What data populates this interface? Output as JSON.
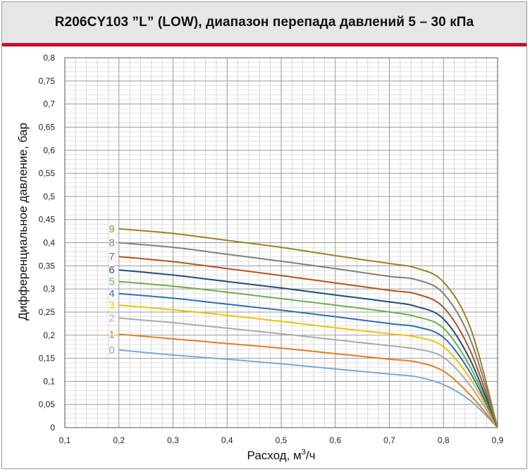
{
  "header": {
    "title": "R206CY103 ”L” (LOW), диапазон перепада давлений 5 – 30 кПа"
  },
  "colors": {
    "accent_bar": "#c8102e",
    "header_bg": "#e6e6e6"
  },
  "chart_data": {
    "type": "line",
    "xlabel_main": "Расход, м",
    "xlabel_sup": "3",
    "xlabel_tail": "/ч",
    "ylabel": "Дифференциальное давление, бар",
    "xlim": [
      0.1,
      0.9
    ],
    "ylim": [
      0,
      0.8
    ],
    "grid": true,
    "x_ticks": [
      "0,1",
      "0,2",
      "0,3",
      "0,4",
      "0,5",
      "0,6",
      "0,7",
      "0,8",
      "0,9"
    ],
    "y_ticks": [
      "0",
      "0,05",
      "0,1",
      "0,15",
      "0,2",
      "0,25",
      "0,3",
      "0,35",
      "0,4",
      "0,45",
      "0,5",
      "0,55",
      "0,6",
      "0,65",
      "0,7",
      "0,75",
      "0,8"
    ],
    "series": [
      {
        "name": "0",
        "color": "#7ea7cf",
        "points": [
          [
            0.2,
            0.168
          ],
          [
            0.3,
            0.157
          ],
          [
            0.4,
            0.148
          ],
          [
            0.5,
            0.138
          ],
          [
            0.6,
            0.127
          ],
          [
            0.7,
            0.116
          ],
          [
            0.75,
            0.11
          ],
          [
            0.8,
            0.093
          ],
          [
            0.85,
            0.058
          ],
          [
            0.9,
            0
          ]
        ]
      },
      {
        "name": "1",
        "color": "#e07e22",
        "points": [
          [
            0.2,
            0.202
          ],
          [
            0.3,
            0.192
          ],
          [
            0.4,
            0.182
          ],
          [
            0.5,
            0.172
          ],
          [
            0.6,
            0.16
          ],
          [
            0.7,
            0.148
          ],
          [
            0.75,
            0.142
          ],
          [
            0.8,
            0.122
          ],
          [
            0.85,
            0.07
          ],
          [
            0.9,
            0
          ]
        ]
      },
      {
        "name": "2",
        "color": "#aaaaaa",
        "points": [
          [
            0.2,
            0.237
          ],
          [
            0.3,
            0.227
          ],
          [
            0.4,
            0.215
          ],
          [
            0.5,
            0.203
          ],
          [
            0.6,
            0.19
          ],
          [
            0.7,
            0.177
          ],
          [
            0.75,
            0.17
          ],
          [
            0.8,
            0.152
          ],
          [
            0.85,
            0.09
          ],
          [
            0.9,
            0
          ]
        ]
      },
      {
        "name": "3",
        "color": "#f2c200",
        "points": [
          [
            0.2,
            0.265
          ],
          [
            0.3,
            0.255
          ],
          [
            0.4,
            0.243
          ],
          [
            0.5,
            0.23
          ],
          [
            0.6,
            0.216
          ],
          [
            0.7,
            0.203
          ],
          [
            0.75,
            0.196
          ],
          [
            0.8,
            0.175
          ],
          [
            0.85,
            0.105
          ],
          [
            0.9,
            0
          ]
        ]
      },
      {
        "name": "4",
        "color": "#2f6fb5",
        "points": [
          [
            0.2,
            0.29
          ],
          [
            0.3,
            0.28
          ],
          [
            0.4,
            0.267
          ],
          [
            0.5,
            0.254
          ],
          [
            0.6,
            0.24
          ],
          [
            0.7,
            0.225
          ],
          [
            0.75,
            0.218
          ],
          [
            0.8,
            0.195
          ],
          [
            0.85,
            0.118
          ],
          [
            0.9,
            0
          ]
        ]
      },
      {
        "name": "5",
        "color": "#6ab04c",
        "points": [
          [
            0.2,
            0.316
          ],
          [
            0.3,
            0.306
          ],
          [
            0.4,
            0.293
          ],
          [
            0.5,
            0.279
          ],
          [
            0.6,
            0.265
          ],
          [
            0.7,
            0.25
          ],
          [
            0.75,
            0.24
          ],
          [
            0.8,
            0.215
          ],
          [
            0.85,
            0.13
          ],
          [
            0.9,
            0
          ]
        ]
      },
      {
        "name": "6",
        "color": "#1f4e79",
        "points": [
          [
            0.2,
            0.341
          ],
          [
            0.3,
            0.33
          ],
          [
            0.4,
            0.316
          ],
          [
            0.5,
            0.302
          ],
          [
            0.6,
            0.287
          ],
          [
            0.7,
            0.272
          ],
          [
            0.75,
            0.262
          ],
          [
            0.8,
            0.235
          ],
          [
            0.85,
            0.145
          ],
          [
            0.9,
            0
          ]
        ]
      },
      {
        "name": "7",
        "color": "#b5541e",
        "points": [
          [
            0.2,
            0.37
          ],
          [
            0.3,
            0.359
          ],
          [
            0.4,
            0.344
          ],
          [
            0.5,
            0.329
          ],
          [
            0.6,
            0.313
          ],
          [
            0.7,
            0.297
          ],
          [
            0.75,
            0.289
          ],
          [
            0.8,
            0.26
          ],
          [
            0.85,
            0.165
          ],
          [
            0.9,
            0
          ]
        ]
      },
      {
        "name": "8",
        "color": "#808080",
        "points": [
          [
            0.2,
            0.4
          ],
          [
            0.3,
            0.39
          ],
          [
            0.4,
            0.375
          ],
          [
            0.5,
            0.36
          ],
          [
            0.6,
            0.344
          ],
          [
            0.7,
            0.327
          ],
          [
            0.75,
            0.32
          ],
          [
            0.8,
            0.29
          ],
          [
            0.85,
            0.19
          ],
          [
            0.9,
            0
          ]
        ]
      },
      {
        "name": "9",
        "color": "#9a8420",
        "points": [
          [
            0.2,
            0.43
          ],
          [
            0.3,
            0.42
          ],
          [
            0.4,
            0.405
          ],
          [
            0.5,
            0.39
          ],
          [
            0.6,
            0.372
          ],
          [
            0.7,
            0.355
          ],
          [
            0.75,
            0.345
          ],
          [
            0.8,
            0.315
          ],
          [
            0.85,
            0.215
          ],
          [
            0.9,
            0
          ]
        ]
      }
    ]
  }
}
